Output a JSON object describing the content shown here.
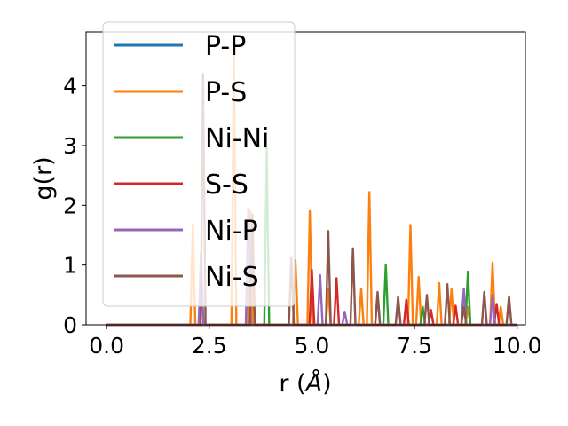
{
  "chart_data": {
    "type": "line",
    "title": "",
    "xlabel_main": "r (",
    "xlabel_unit": "Å",
    "xlabel_close": ")",
    "ylabel": "g(r)",
    "xlim": [
      -0.5,
      10.2
    ],
    "ylim": [
      0,
      4.9
    ],
    "xticks": [
      0.0,
      2.5,
      5.0,
      7.5,
      10.0
    ],
    "xtick_labels": [
      "0.0",
      "2.5",
      "5.0",
      "7.5",
      "10.0"
    ],
    "yticks": [
      0,
      1,
      2,
      3,
      4
    ],
    "ytick_labels": [
      "0",
      "1",
      "2",
      "3",
      "4"
    ],
    "grid": false,
    "legend_position": "top-left",
    "series": [
      {
        "name": "P-P",
        "color": "#1f77b4",
        "spikes": []
      },
      {
        "name": "P-S",
        "color": "#ff7f0e",
        "spikes": [
          [
            2.1,
            1.68
          ],
          [
            3.1,
            4.55
          ],
          [
            3.5,
            1.9
          ],
          [
            4.6,
            1.08
          ],
          [
            4.95,
            1.9
          ],
          [
            5.4,
            0.6
          ],
          [
            6.2,
            0.6
          ],
          [
            6.4,
            2.22
          ],
          [
            7.4,
            1.67
          ],
          [
            7.6,
            0.8
          ],
          [
            8.1,
            0.7
          ],
          [
            8.4,
            0.6
          ],
          [
            8.8,
            0.3
          ],
          [
            9.4,
            1.04
          ],
          [
            9.6,
            0.3
          ]
        ]
      },
      {
        "name": "Ni-Ni",
        "color": "#2ca02c",
        "spikes": [
          [
            3.9,
            2.95
          ],
          [
            6.8,
            1.0
          ],
          [
            7.7,
            0.3
          ],
          [
            8.8,
            0.89
          ]
        ]
      },
      {
        "name": "S-S",
        "color": "#d62728",
        "spikes": [
          [
            5.0,
            0.92
          ],
          [
            5.6,
            0.78
          ],
          [
            7.3,
            0.42
          ],
          [
            7.9,
            0.25
          ],
          [
            8.5,
            0.32
          ],
          [
            9.5,
            0.35
          ]
        ]
      },
      {
        "name": "Ni-P",
        "color": "#9467bd",
        "spikes": [
          [
            2.3,
            1.2
          ],
          [
            3.45,
            1.95
          ],
          [
            5.2,
            0.83
          ],
          [
            5.8,
            0.22
          ],
          [
            6.6,
            0.5
          ],
          [
            8.7,
            0.6
          ],
          [
            9.4,
            0.5
          ]
        ]
      },
      {
        "name": "Ni-S",
        "color": "#8c564b",
        "spikes": [
          [
            2.35,
            4.2
          ],
          [
            3.55,
            1.85
          ],
          [
            4.5,
            1.12
          ],
          [
            5.4,
            1.57
          ],
          [
            6.0,
            1.28
          ],
          [
            6.6,
            0.55
          ],
          [
            7.1,
            0.47
          ],
          [
            7.8,
            0.5
          ],
          [
            8.3,
            0.68
          ],
          [
            8.7,
            0.3
          ],
          [
            9.2,
            0.55
          ],
          [
            9.8,
            0.48
          ]
        ]
      }
    ]
  }
}
